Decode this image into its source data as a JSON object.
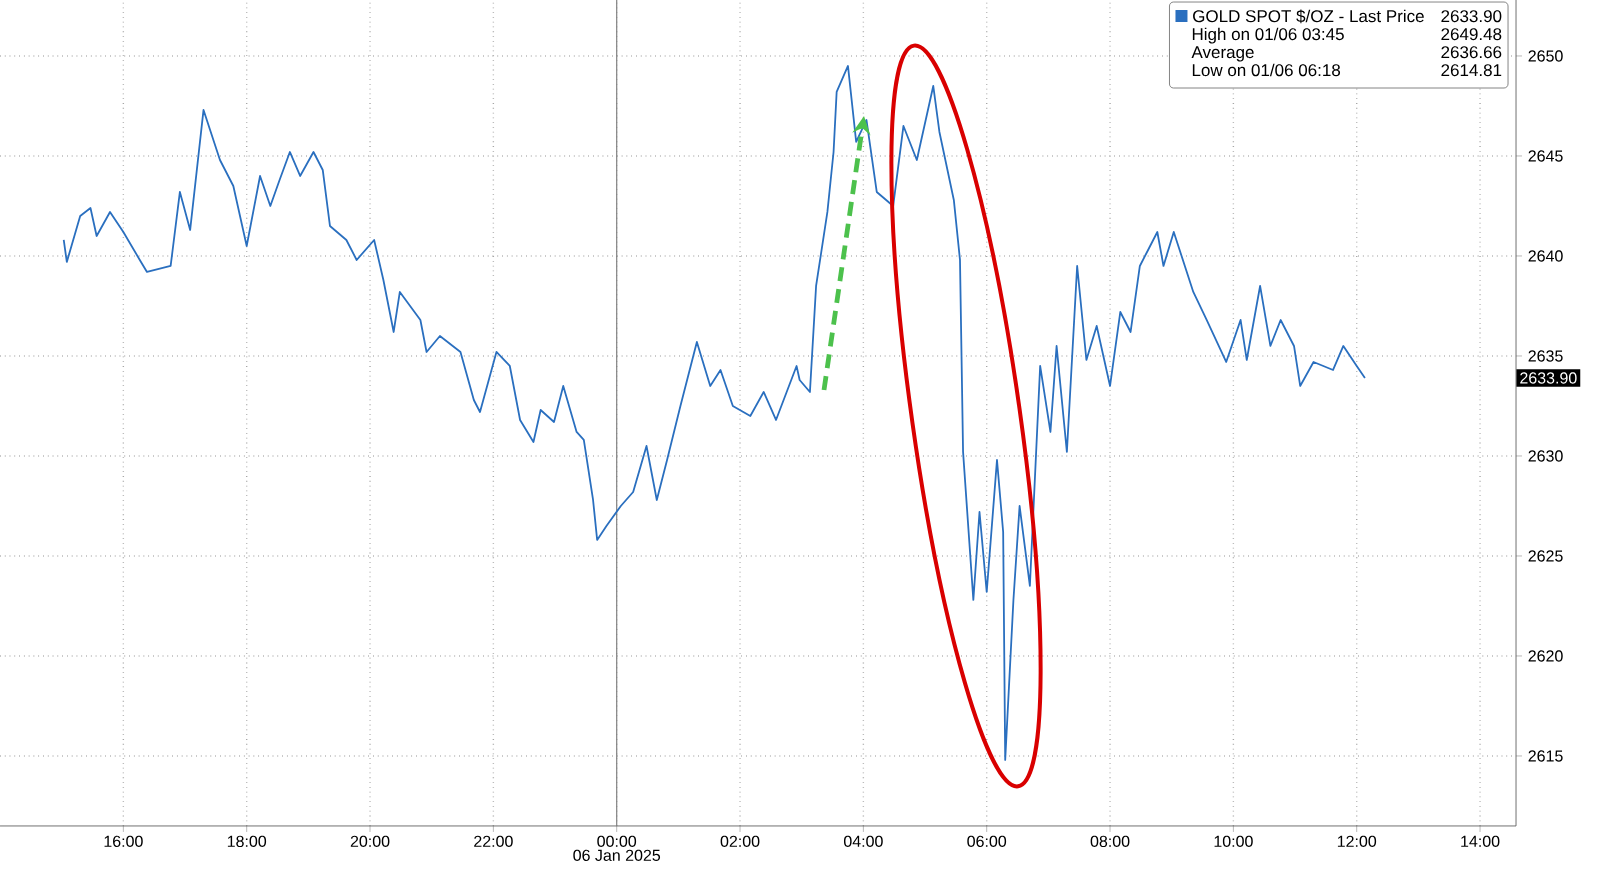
{
  "chart_data": {
    "type": "line",
    "xlabel": "06 Jan 2025",
    "xlim": [
      "2025-01-05T14:00",
      "2025-01-06T14:35"
    ],
    "ylim": [
      2611.5,
      2652.8
    ],
    "xticks": [
      {
        "value": "2025-01-05T16:00",
        "label": "16:00"
      },
      {
        "value": "2025-01-05T18:00",
        "label": "18:00"
      },
      {
        "value": "2025-01-05T20:00",
        "label": "20:00"
      },
      {
        "value": "2025-01-05T22:00",
        "label": "22:00"
      },
      {
        "value": "2025-01-06T00:00",
        "label": "00:00"
      },
      {
        "value": "2025-01-06T02:00",
        "label": "02:00"
      },
      {
        "value": "2025-01-06T04:00",
        "label": "04:00"
      },
      {
        "value": "2025-01-06T06:00",
        "label": "06:00"
      },
      {
        "value": "2025-01-06T08:00",
        "label": "08:00"
      },
      {
        "value": "2025-01-06T10:00",
        "label": "10:00"
      },
      {
        "value": "2025-01-06T12:00",
        "label": "12:00"
      },
      {
        "value": "2025-01-06T14:00",
        "label": "14:00"
      }
    ],
    "yticks": [
      2615,
      2620,
      2625,
      2630,
      2635,
      2640,
      2645,
      2650
    ],
    "grid": true,
    "legend": "top right",
    "ref_lines": [
      {
        "axis": "x",
        "value": "2025-01-06T00:00",
        "color": "#808080"
      }
    ],
    "annotations": [
      "2633.90",
      "High on 01/06 03:45",
      "2649.48",
      "Average",
      "2636.66",
      "Low on 01/06 06:18",
      "2614.81",
      "2633.90"
    ],
    "series": [
      {
        "name": "GOLD SPOT $/OZ - Last Price",
        "color": "#2a6fbf",
        "x": [
          "2025-01-05T15:02",
          "2025-01-05T15:05",
          "2025-01-05T15:18",
          "2025-01-05T15:28",
          "2025-01-05T15:34",
          "2025-01-05T15:47",
          "2025-01-05T16:00",
          "2025-01-05T16:16",
          "2025-01-05T16:23",
          "2025-01-05T16:46",
          "2025-01-05T16:55",
          "2025-01-05T17:05",
          "2025-01-05T17:18",
          "2025-01-05T17:34",
          "2025-01-05T17:47",
          "2025-01-05T18:00",
          "2025-01-05T18:13",
          "2025-01-05T18:23",
          "2025-01-05T18:32",
          "2025-01-05T18:42",
          "2025-01-05T18:52",
          "2025-01-05T19:05",
          "2025-01-05T19:14",
          "2025-01-05T19:21",
          "2025-01-05T19:37",
          "2025-01-05T19:47",
          "2025-01-05T20:04",
          "2025-01-05T20:13",
          "2025-01-05T20:23",
          "2025-01-05T20:29",
          "2025-01-05T20:49",
          "2025-01-05T20:55",
          "2025-01-05T21:08",
          "2025-01-05T21:28",
          "2025-01-05T21:41",
          "2025-01-05T21:47",
          "2025-01-05T22:03",
          "2025-01-05T22:16",
          "2025-01-05T22:26",
          "2025-01-05T22:39",
          "2025-01-05T22:46",
          "2025-01-05T22:59",
          "2025-01-05T23:08",
          "2025-01-05T23:21",
          "2025-01-05T23:28",
          "2025-01-05T23:37",
          "2025-01-05T23:41",
          "2025-01-05T23:50",
          "2025-01-06T00:04",
          "2025-01-06T00:16",
          "2025-01-06T00:29",
          "2025-01-06T00:39",
          "2025-01-06T00:49",
          "2025-01-06T01:02",
          "2025-01-06T01:18",
          "2025-01-06T01:31",
          "2025-01-06T01:41",
          "2025-01-06T01:53",
          "2025-01-06T02:10",
          "2025-01-06T02:23",
          "2025-01-06T02:35",
          "2025-01-06T02:55",
          "2025-01-06T02:58",
          "2025-01-06T03:08",
          "2025-01-06T03:14",
          "2025-01-06T03:25",
          "2025-01-06T03:31",
          "2025-01-06T03:34",
          "2025-01-06T03:45",
          "2025-01-06T03:53",
          "2025-01-06T04:03",
          "2025-01-06T04:13",
          "2025-01-06T04:29",
          "2025-01-06T04:39",
          "2025-01-06T04:52",
          "2025-01-06T05:08",
          "2025-01-06T05:14",
          "2025-01-06T05:28",
          "2025-01-06T05:34",
          "2025-01-06T05:37",
          "2025-01-06T05:47",
          "2025-01-06T05:53",
          "2025-01-06T06:00",
          "2025-01-06T06:10",
          "2025-01-06T06:16",
          "2025-01-06T06:18",
          "2025-01-06T06:26",
          "2025-01-06T06:32",
          "2025-01-06T06:42",
          "2025-01-06T06:52",
          "2025-01-06T07:02",
          "2025-01-06T07:08",
          "2025-01-06T07:18",
          "2025-01-06T07:28",
          "2025-01-06T07:37",
          "2025-01-06T07:47",
          "2025-01-06T08:00",
          "2025-01-06T08:10",
          "2025-01-06T08:20",
          "2025-01-06T08:29",
          "2025-01-06T08:36",
          "2025-01-06T08:46",
          "2025-01-06T08:52",
          "2025-01-06T09:02",
          "2025-01-06T09:21",
          "2025-01-06T09:34",
          "2025-01-06T09:53",
          "2025-01-06T10:07",
          "2025-01-06T10:13",
          "2025-01-06T10:26",
          "2025-01-06T10:36",
          "2025-01-06T10:46",
          "2025-01-06T10:59",
          "2025-01-06T11:05",
          "2025-01-06T11:18",
          "2025-01-06T11:37",
          "2025-01-06T11:47",
          "2025-01-06T12:00",
          "2025-01-06T12:08"
        ],
        "values": [
          2640.8,
          2639.7,
          2642.0,
          2642.4,
          2641.0,
          2642.2,
          2641.2,
          2639.8,
          2639.2,
          2639.5,
          2643.2,
          2641.3,
          2647.3,
          2644.8,
          2643.5,
          2640.5,
          2644.0,
          2642.5,
          2643.8,
          2645.2,
          2644.0,
          2645.2,
          2644.3,
          2641.5,
          2640.8,
          2639.8,
          2640.8,
          2638.8,
          2636.2,
          2638.2,
          2636.8,
          2635.2,
          2636.0,
          2635.2,
          2632.8,
          2632.2,
          2635.2,
          2634.5,
          2631.8,
          2630.7,
          2632.3,
          2631.7,
          2633.5,
          2631.2,
          2630.8,
          2627.8,
          2625.8,
          2626.5,
          2627.5,
          2628.2,
          2630.5,
          2627.8,
          2629.8,
          2632.5,
          2635.7,
          2633.5,
          2634.3,
          2632.5,
          2632.0,
          2633.2,
          2631.8,
          2634.5,
          2633.8,
          2633.2,
          2638.5,
          2642.2,
          2645.2,
          2648.2,
          2649.5,
          2645.7,
          2646.8,
          2643.2,
          2642.5,
          2646.5,
          2644.8,
          2648.5,
          2646.2,
          2642.8,
          2639.8,
          2630.2,
          2622.8,
          2627.2,
          2623.2,
          2629.8,
          2626.2,
          2614.8,
          2622.8,
          2627.5,
          2623.5,
          2634.5,
          2631.2,
          2635.5,
          2630.2,
          2639.5,
          2634.8,
          2636.5,
          2633.5,
          2637.2,
          2636.2,
          2639.5,
          2640.2,
          2641.2,
          2639.5,
          2641.2,
          2638.2,
          2636.8,
          2634.7,
          2636.8,
          2634.8,
          2638.5,
          2635.5,
          2636.8,
          2635.5,
          2633.5,
          2634.7,
          2634.3,
          2635.5,
          2634.5,
          2633.9
        ]
      }
    ]
  }
}
